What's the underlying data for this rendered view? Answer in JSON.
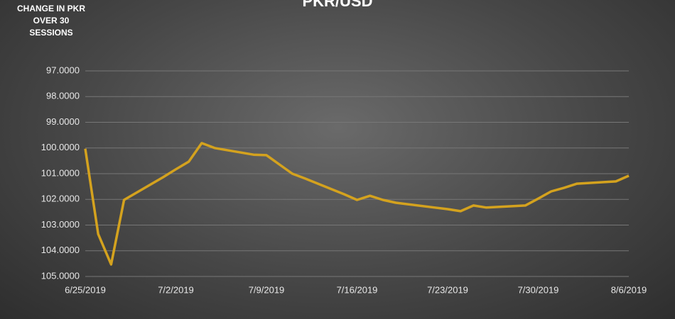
{
  "chart_data": {
    "type": "line",
    "title": "PKR/USD",
    "annotation": "CHANGE IN PKR OVER 30 SESSIONS",
    "x": [
      "6/25/2019",
      "6/26/2019",
      "6/27/2019",
      "6/28/2019",
      "7/1/2019",
      "7/2/2019",
      "7/3/2019",
      "7/4/2019",
      "7/5/2019",
      "7/8/2019",
      "7/9/2019",
      "7/10/2019",
      "7/11/2019",
      "7/12/2019",
      "7/15/2019",
      "7/16/2019",
      "7/17/2019",
      "7/18/2019",
      "7/19/2019",
      "7/22/2019",
      "7/23/2019",
      "7/24/2019",
      "7/25/2019",
      "7/26/2019",
      "7/29/2019",
      "7/30/2019",
      "7/31/2019",
      "8/1/2019",
      "8/2/2019",
      "8/5/2019",
      "8/6/2019"
    ],
    "series": [
      {
        "name": "PKR/USD",
        "color": "#d4a21e",
        "values": [
          100.03,
          103.35,
          104.53,
          102.02,
          101.14,
          100.83,
          100.53,
          99.81,
          100.0,
          100.26,
          100.28,
          100.64,
          101.0,
          101.19,
          101.8,
          102.02,
          101.86,
          102.02,
          102.13,
          102.32,
          102.38,
          102.46,
          102.24,
          102.32,
          102.24,
          101.97,
          101.69,
          101.55,
          101.39,
          101.3,
          101.08
        ]
      }
    ],
    "xlim": [
      "6/25/2019",
      "8/6/2019"
    ],
    "xticks": [
      "6/25/2019",
      "7/2/2019",
      "7/9/2019",
      "7/16/2019",
      "7/23/2019",
      "7/30/2019",
      "8/6/2019"
    ],
    "ylim": [
      97,
      105
    ],
    "y_inverted": true,
    "yticks": [
      {
        "value": 97,
        "label": "97.0000"
      },
      {
        "value": 98,
        "label": "98.0000"
      },
      {
        "value": 99,
        "label": "99.0000"
      },
      {
        "value": 100,
        "label": "100.0000"
      },
      {
        "value": 101,
        "label": "101.0000"
      },
      {
        "value": 102,
        "label": "102.0000"
      },
      {
        "value": 103,
        "label": "103.0000"
      },
      {
        "value": 104,
        "label": "104.0000"
      },
      {
        "value": 105,
        "label": "105.0000"
      }
    ],
    "grid": true
  }
}
